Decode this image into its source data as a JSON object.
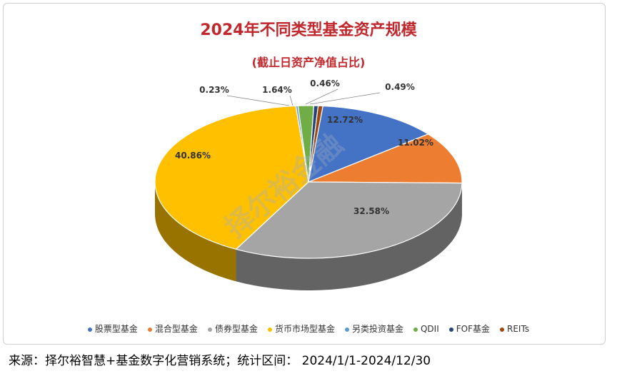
{
  "chart_data": {
    "type": "pie",
    "title": "2024年不同类型基金资产规模",
    "subtitle": "(截止日资产净值占比)",
    "categories": [
      "股票型基金",
      "混合型基金",
      "债券型基金",
      "货币市场型基金",
      "另类投资基金",
      "QDII",
      "FOF基金",
      "REITs"
    ],
    "values": [
      12.72,
      11.02,
      32.58,
      40.86,
      0.23,
      1.64,
      0.46,
      0.49
    ],
    "labels": [
      "12.72%",
      "11.02%",
      "32.58%",
      "40.86%",
      "0.23%",
      "1.64%",
      "0.46%",
      "0.49%"
    ],
    "colors": [
      "#4472c4",
      "#ed7d31",
      "#a5a5a5",
      "#ffc000",
      "#5b9bd5",
      "#70ad47",
      "#264478",
      "#9e480e"
    ],
    "legend_position": "bottom"
  },
  "watermark": "择尔裕金融",
  "footer": "来源：择尔裕智慧+基金数字化营销系统；统计区间：  2024/1/1-2024/12/30"
}
